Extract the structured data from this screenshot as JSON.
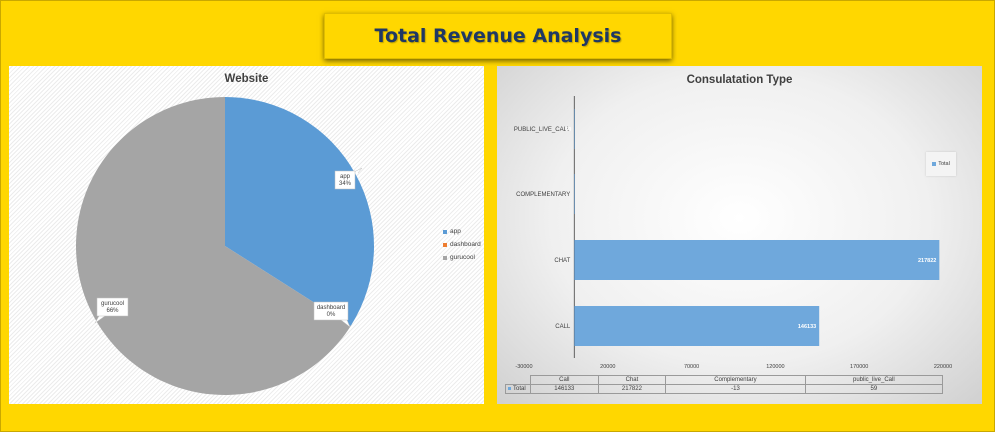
{
  "page_title": "Total Revenue Analysis",
  "chart_data": [
    {
      "type": "pie",
      "title": "Website",
      "categories": [
        "app",
        "dashboard",
        "gurucool"
      ],
      "values": [
        34,
        0,
        66
      ],
      "value_unit": "%",
      "data_labels": [
        {
          "name": "app",
          "pct": "34%"
        },
        {
          "name": "dashboard",
          "pct": "0%"
        },
        {
          "name": "gurucool",
          "pct": "66%"
        }
      ],
      "colors": [
        "#5B9BD5",
        "#ED7D31",
        "#A5A5A5"
      ],
      "legend": [
        "app",
        "dashboard",
        "gurucool"
      ],
      "legend_position": "right"
    },
    {
      "type": "bar",
      "orientation": "horizontal",
      "title": "Consulatation Type",
      "categories": [
        "CALL",
        "CHAT",
        "COMPLEMENTARY",
        "PUBLIC_LIVE_CALL"
      ],
      "series": [
        {
          "name": "Total",
          "values": [
            146133,
            217822,
            -13,
            59
          ]
        }
      ],
      "data_labels": [
        "146133",
        "217822",
        "",
        "59"
      ],
      "xlim": [
        -30000,
        220000
      ],
      "xticks": [
        -30000,
        20000,
        70000,
        120000,
        170000,
        220000
      ],
      "bar_color": "#6FA8DC",
      "legend": [
        "Total"
      ],
      "legend_position": "right",
      "data_table": {
        "headers": [
          "Call",
          "Chat",
          "Complementary",
          "public_live_Call"
        ],
        "row_label": "Total",
        "values": [
          "146133",
          "217822",
          "-13",
          "59"
        ]
      }
    }
  ]
}
